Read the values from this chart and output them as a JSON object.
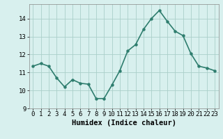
{
  "x": [
    0,
    1,
    2,
    3,
    4,
    5,
    6,
    7,
    8,
    9,
    10,
    11,
    12,
    13,
    14,
    15,
    16,
    17,
    18,
    19,
    20,
    21,
    22,
    23
  ],
  "y": [
    11.35,
    11.5,
    11.35,
    10.7,
    10.2,
    10.6,
    10.4,
    10.35,
    9.55,
    9.55,
    10.3,
    11.1,
    12.2,
    12.55,
    13.4,
    14.0,
    14.45,
    13.85,
    13.3,
    13.05,
    12.05,
    11.35,
    11.25,
    11.1
  ],
  "line_color": "#2e7d6e",
  "marker": "o",
  "marker_size": 2.2,
  "line_width": 1.2,
  "bg_color": "#d8f0ee",
  "grid_color": "#aacfc9",
  "xlabel": "Humidex (Indice chaleur)",
  "xlabel_fontsize": 7.5,
  "tick_fontsize": 6.5,
  "ylim": [
    9,
    14.8
  ],
  "yticks": [
    9,
    10,
    11,
    12,
    13,
    14
  ],
  "xlim": [
    -0.5,
    23.5
  ],
  "xticks": [
    0,
    1,
    2,
    3,
    4,
    5,
    6,
    7,
    8,
    9,
    10,
    11,
    12,
    13,
    14,
    15,
    16,
    17,
    18,
    19,
    20,
    21,
    22,
    23
  ]
}
